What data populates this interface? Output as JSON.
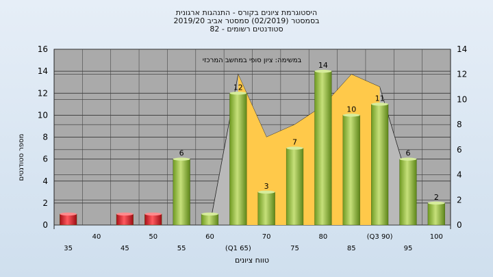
{
  "header": {
    "line1": "היסטוגרמת ציונים בקורס - התנהגות ארגונית",
    "line2": "בסמסטר  (02/2019)  סמסטר אביב 2019/20",
    "line3": "סטודנטים רשומים - 82"
  },
  "chart_data": {
    "type": "bar",
    "title": "היסטוגרמת ציונים בקורס - התנהגות ארגונית",
    "annotation": "במשימה: ציון סופי במחשב המרכזי",
    "xlabel": "טווח ציונים",
    "ylabel": "מספר סטודנטים",
    "ylim": [
      0,
      16
    ],
    "ylim_right": [
      0,
      14
    ],
    "yticks": [
      0,
      2,
      4,
      6,
      8,
      10,
      12,
      14,
      16
    ],
    "yticks_right": [
      0,
      2,
      4,
      6,
      8,
      10,
      12,
      14
    ],
    "grid": true,
    "categories": [
      "35",
      "40",
      "45",
      "50",
      "55",
      "60",
      "(Q1 65)",
      "70",
      "75",
      "80",
      "85",
      "(Q3 90)",
      "95",
      "100"
    ],
    "values": [
      1,
      0,
      1,
      1,
      6,
      1,
      12,
      3,
      7,
      14,
      10,
      11,
      6,
      2
    ],
    "value_labels": [
      "",
      "",
      "",
      "",
      "6",
      "",
      "12",
      "3",
      "7",
      "14",
      "10",
      "11",
      "6",
      "2"
    ],
    "bar_colors": [
      "red",
      "none",
      "red",
      "red",
      "green",
      "green",
      "green",
      "green",
      "green",
      "green",
      "green",
      "green",
      "green",
      "green"
    ],
    "background_series": {
      "type": "area",
      "axis": "right",
      "x_from_category": 5.5,
      "values": [
        0,
        12,
        7,
        8,
        9.5,
        12,
        11,
        3.5
      ],
      "x_positions": [
        "60",
        "(Q1 65)",
        "70",
        "75",
        "80",
        "85",
        "(Q3 90)",
        "95"
      ],
      "colors": {
        "outer": "#b9b9b9",
        "inner": "#ffc94a"
      }
    },
    "colors": {
      "red": "#d8202a",
      "green": "#8fbe3a",
      "plot_bg": "#aaaaaa"
    }
  }
}
